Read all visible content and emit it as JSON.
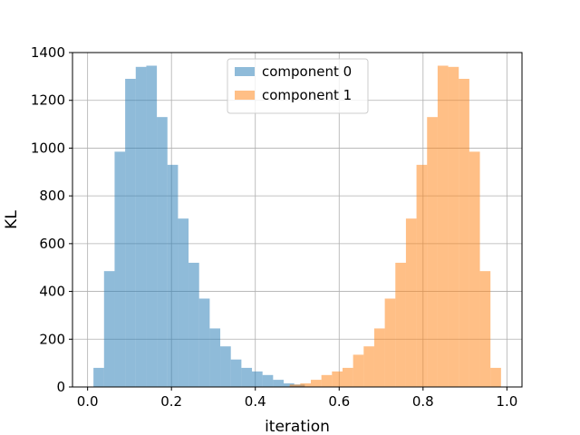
{
  "chart_data": {
    "type": "histogram",
    "xlabel": "iteration",
    "ylabel": "KL",
    "xlim": [
      -0.036,
      1.036
    ],
    "ylim": [
      0,
      1400
    ],
    "xticks": [
      0.0,
      0.2,
      0.4,
      0.6,
      0.8,
      1.0
    ],
    "xtick_labels": [
      "0.0",
      "0.2",
      "0.4",
      "0.6",
      "0.8",
      "1.0"
    ],
    "yticks": [
      0,
      200,
      400,
      600,
      800,
      1000,
      1200,
      1400
    ],
    "ytick_labels": [
      "0",
      "200",
      "400",
      "600",
      "800",
      "1000",
      "1200",
      "1400"
    ],
    "grid": true,
    "legend_position": "upper center",
    "series": [
      {
        "name": "component 0",
        "color": "#1f77b4",
        "alpha": 0.5,
        "bin_edges": [
          0.014,
          0.0392,
          0.0644,
          0.0896,
          0.1148,
          0.14,
          0.1652,
          0.1904,
          0.2156,
          0.2408,
          0.266,
          0.2912,
          0.3164,
          0.3416,
          0.3668,
          0.392,
          0.4172,
          0.4424,
          0.4676,
          0.4928,
          0.518
        ],
        "counts": [
          80,
          485,
          985,
          1290,
          1340,
          1345,
          1130,
          930,
          705,
          520,
          370,
          245,
          170,
          115,
          80,
          65,
          50,
          30,
          15,
          10
        ]
      },
      {
        "name": "component 1",
        "color": "#ff7f0e",
        "alpha": 0.5,
        "bin_edges": [
          0.482,
          0.5072,
          0.5324,
          0.5576,
          0.5828,
          0.608,
          0.6332,
          0.6584,
          0.6836,
          0.7088,
          0.734,
          0.7592,
          0.7844,
          0.8096,
          0.8348,
          0.86,
          0.8852,
          0.9104,
          0.9356,
          0.9608,
          0.986
        ],
        "counts": [
          10,
          15,
          30,
          50,
          65,
          80,
          135,
          170,
          245,
          370,
          520,
          705,
          930,
          1130,
          1345,
          1340,
          1290,
          985,
          485,
          80
        ]
      }
    ]
  }
}
